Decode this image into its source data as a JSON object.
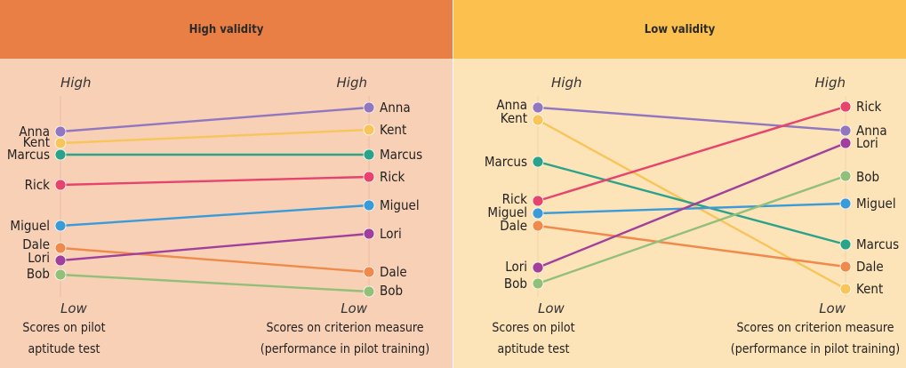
{
  "panels": [
    {
      "title": "High validity",
      "axis": {
        "left_high": "High",
        "left_low": "Low",
        "right_high": "High",
        "right_low": "Low"
      },
      "captions": {
        "left": [
          "Scores on pilot",
          "aptitude test"
        ],
        "right": [
          "Scores on criterion measure",
          "(performance in pilot training)"
        ]
      },
      "people": [
        {
          "name": "Anna",
          "color": "#9176c0",
          "left_label": "Anna",
          "right_label": "Anna"
        },
        {
          "name": "Kent",
          "color": "#f7c55a",
          "left_label": "Kent",
          "right_label": "Kent"
        },
        {
          "name": "Marcus",
          "color": "#2aa38a",
          "left_label": "Marcus",
          "right_label": "Marcus"
        },
        {
          "name": "Rick",
          "color": "#e6436d",
          "left_label": "Rick",
          "right_label": "Rick"
        },
        {
          "name": "Miguel",
          "color": "#3a9bd8",
          "left_label": "Miguel",
          "right_label": "Miguel"
        },
        {
          "name": "Dale",
          "color": "#ef8a4a",
          "left_label": "Dale",
          "right_label": "Dale"
        },
        {
          "name": "Lori",
          "color": "#a1409c",
          "left_label": "Lori",
          "right_label": "Lori"
        },
        {
          "name": "Bob",
          "color": "#92bf7a",
          "left_label": "Bob",
          "right_label": "Bob"
        }
      ]
    },
    {
      "title": "Low validity",
      "axis": {
        "left_high": "High",
        "left_low": "Low",
        "right_high": "High",
        "right_low": "Low"
      },
      "captions": {
        "left": [
          "Scores on pilot",
          "aptitude test"
        ],
        "right": [
          "Scores on criterion measure",
          "(performance in pilot training)"
        ]
      },
      "people": [
        {
          "name": "Anna",
          "color": "#9176c0",
          "left_label": "Anna",
          "right_label": "Anna"
        },
        {
          "name": "Kent",
          "color": "#f7c55a",
          "left_label": "Kent",
          "right_label": "Kent"
        },
        {
          "name": "Marcus",
          "color": "#2aa38a",
          "left_label": "Marcus",
          "right_label": "Marcus"
        },
        {
          "name": "Rick",
          "color": "#e6436d",
          "left_label": "Rick",
          "right_label": "Rick"
        },
        {
          "name": "Miguel",
          "color": "#3a9bd8",
          "left_label": "Miguel",
          "right_label": "Miguel"
        },
        {
          "name": "Dale",
          "color": "#ef8a4a",
          "left_label": "Dale",
          "right_label": "Dale"
        },
        {
          "name": "Lori",
          "color": "#a1409c",
          "left_label": "Lori",
          "right_label": "Lori"
        },
        {
          "name": "Bob",
          "color": "#92bf7a",
          "left_label": "Bob",
          "right_label": "Bob"
        }
      ]
    }
  ],
  "accent_arc_color": "#e8282b"
}
